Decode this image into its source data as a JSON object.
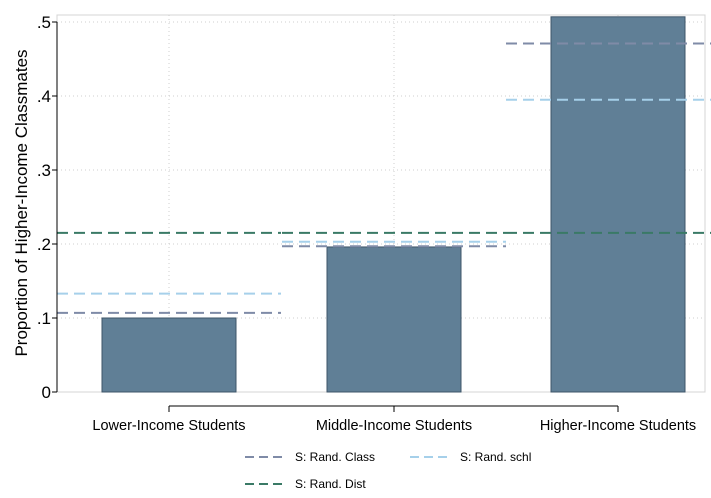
{
  "chart_data": {
    "type": "bar",
    "title": "",
    "xlabel": "",
    "ylabel": "Proportion of Higher-Income Classmates",
    "ylim": [
      0,
      0.5
    ],
    "yticks": [
      0,
      0.1,
      0.2,
      0.3,
      0.4,
      0.5
    ],
    "ytick_labels": [
      "0",
      ".1",
      ".2",
      ".3",
      ".4",
      ".5"
    ],
    "categories": [
      "Lower-Income Students",
      "Middle-Income Students",
      "Higher-Income Students"
    ],
    "values": [
      0.1,
      0.196,
      0.507
    ],
    "bar_color": "#607f96",
    "bar_edge_color": "#3e5468",
    "grid": "dotted",
    "reference_lines": [
      {
        "name": "S: Rand. Class",
        "color": "#7f8ba7",
        "values": [
          0.107,
          0.197,
          0.471
        ]
      },
      {
        "name": "S: Rand. schl",
        "color": "#a6d0ea",
        "values": [
          0.133,
          0.203,
          0.395
        ]
      },
      {
        "name": "S: Rand. Dist",
        "color": "#3a7a66",
        "values": [
          0.215,
          0.215,
          0.215
        ]
      }
    ],
    "legend_position": "bottom"
  }
}
